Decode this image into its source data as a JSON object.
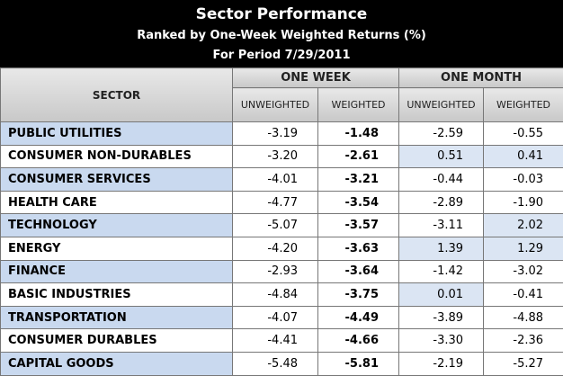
{
  "header": {
    "title": "Sector Performance",
    "subtitle": "Ranked by One-Week Weighted Returns (%)",
    "period": "For Period 7/29/2011"
  },
  "table": {
    "group_headers": [
      "ONE WEEK",
      "ONE MONTH"
    ],
    "columns": [
      "SECTOR",
      "UNWEIGHTED",
      "WEIGHTED",
      "UNWEIGHTED",
      "WEIGHTED"
    ],
    "rows": [
      [
        "PUBLIC UTILITIES",
        "-3.19",
        "-1.48",
        "-2.59",
        "-0.55"
      ],
      [
        "CONSUMER NON-DURABLES",
        "-3.20",
        "-2.61",
        "0.51",
        "0.41"
      ],
      [
        "CONSUMER SERVICES",
        "-4.01",
        "-3.21",
        "-0.44",
        "-0.03"
      ],
      [
        "HEALTH CARE",
        "-4.77",
        "-3.54",
        "-2.89",
        "-1.90"
      ],
      [
        "TECHNOLOGY",
        "-5.07",
        "-3.57",
        "-3.11",
        "2.02"
      ],
      [
        "ENERGY",
        "-4.20",
        "-3.63",
        "1.39",
        "1.29"
      ],
      [
        "FINANCE",
        "-2.93",
        "-3.64",
        "-1.42",
        "-3.02"
      ],
      [
        "BASIC INDUSTRIES",
        "-4.84",
        "-3.75",
        "0.01",
        "-0.41"
      ],
      [
        "TRANSPORTATION",
        "-4.07",
        "-4.49",
        "-3.89",
        "-4.88"
      ],
      [
        "CONSUMER DURABLES",
        "-4.41",
        "-4.66",
        "-3.30",
        "-2.36"
      ],
      [
        "CAPITAL GOODS",
        "-5.48",
        "-5.81",
        "-2.19",
        "-5.27"
      ]
    ]
  }
}
